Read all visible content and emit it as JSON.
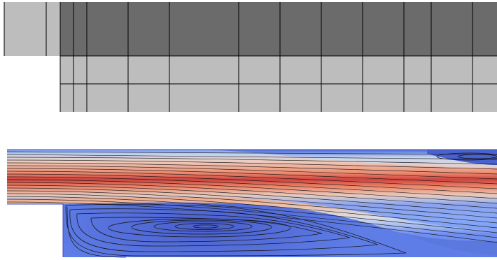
{
  "mesh_figure": {
    "inlet_columns": 2,
    "main_columns": 11,
    "main_rows": 3,
    "colors": {
      "upper_block": "#6b6b6b",
      "inlet_block": "#bdbdbd",
      "lower_blocks": "#bdbdbd",
      "grid_lines": "#000000"
    }
  },
  "flow_figure": {
    "colormap": [
      "#3b4cc0",
      "#7b9ff9",
      "#c0d4f5",
      "#f2cbb7",
      "#ee8468",
      "#b40426"
    ],
    "streamline_color": "#111111",
    "features": [
      "recirculation-vortex",
      "upper-corner-eddy"
    ]
  }
}
